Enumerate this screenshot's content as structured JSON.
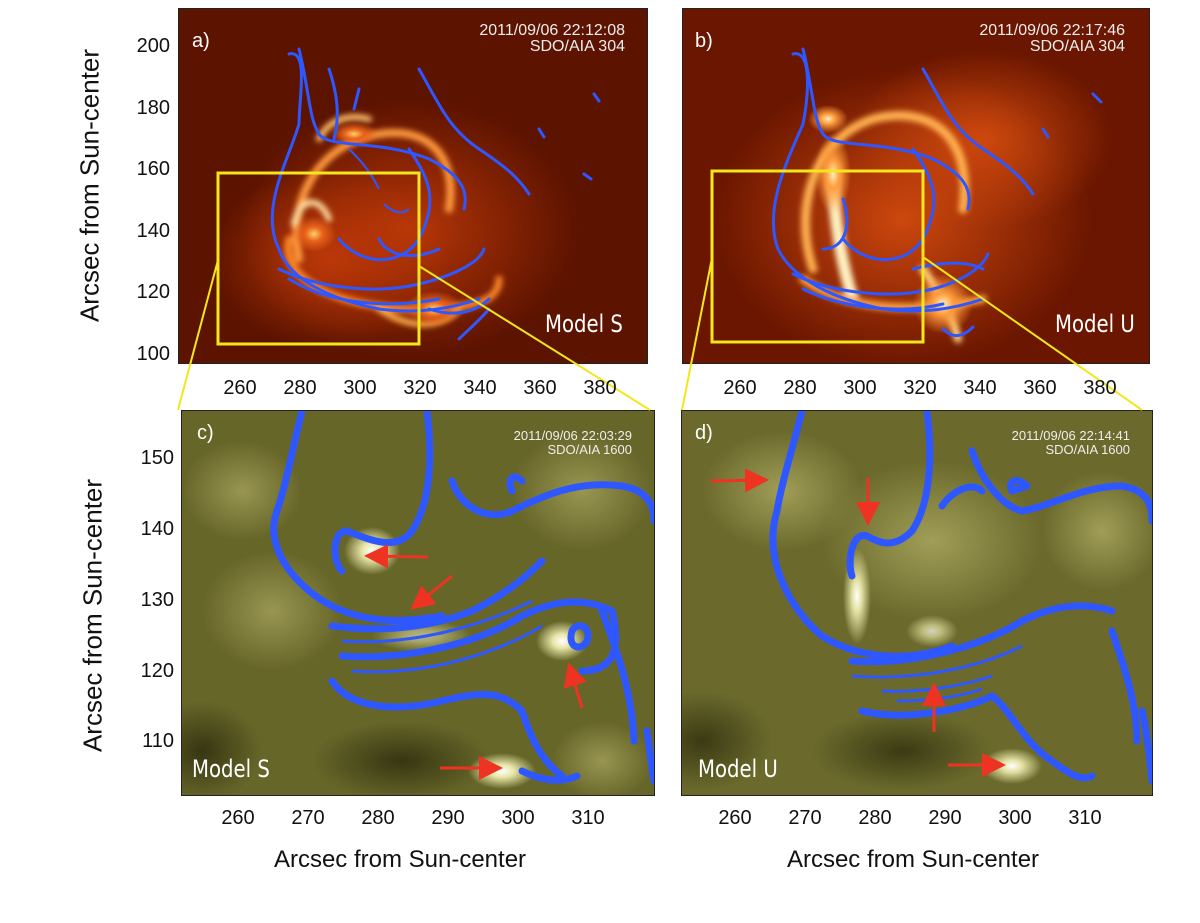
{
  "top_axes": {
    "ylabel": "Arcsec from Sun-center",
    "yticks": [
      "200",
      "180",
      "160",
      "140",
      "120",
      "100"
    ],
    "xticks_a": [
      "260",
      "280",
      "300",
      "320",
      "340",
      "360",
      "380"
    ],
    "xticks_b": [
      "260",
      "280",
      "300",
      "320",
      "340",
      "360",
      "380"
    ]
  },
  "bottom_axes": {
    "ylabel": "Arcsec from Sun-center",
    "yticks": [
      "150",
      "140",
      "130",
      "120",
      "110"
    ],
    "xlabel_c": "Arcsec from Sun-center",
    "xlabel_d": "Arcsec from Sun-center",
    "xticks_c": [
      "260",
      "270",
      "280",
      "290",
      "300",
      "310"
    ],
    "xticks_d": [
      "260",
      "270",
      "280",
      "290",
      "300",
      "310"
    ]
  },
  "panels": {
    "a": {
      "label": "a)",
      "time": "2011/09/06 22:12:08",
      "instrument": "SDO/AIA 304",
      "model": "Model S"
    },
    "b": {
      "label": "b)",
      "time": "2011/09/06 22:17:46",
      "instrument": "SDO/AIA 304",
      "model": "Model U"
    },
    "c": {
      "label": "c)",
      "time": "2011/09/06 22:03:29",
      "instrument": "SDO/AIA 1600",
      "model": "Model S"
    },
    "d": {
      "label": "d)",
      "time": "2011/09/06 22:14:41",
      "instrument": "SDO/AIA 1600",
      "model": "Model U"
    }
  },
  "colors": {
    "contour": "#2f57ff",
    "zoom_box": "#f4e61a",
    "arrow": "#ee3322",
    "aia304_bg": "#6e1600",
    "aia1600_bg": "#6b6a2a"
  }
}
